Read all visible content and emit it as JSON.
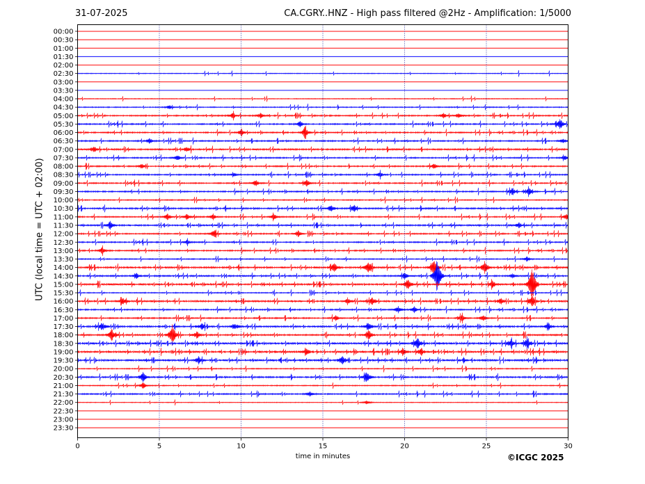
{
  "date": "31-07-2025",
  "title": "CA.CGRY..HNZ - High pass filtered @2Hz - Amplification: 1/5000",
  "copyright": "©ICGC 2025",
  "colors": {
    "red": "#ff0000",
    "blue": "#0000ff",
    "grid": "#00008b"
  },
  "chart_data": {
    "type": "line",
    "xlabel": "time in minutes",
    "ylabel": "UTC (local time = UTC + 02:00)",
    "xlim": [
      0,
      30
    ],
    "x_ticks": [
      0,
      5,
      10,
      15,
      20,
      25,
      30
    ],
    "row_labels": [
      "00:00",
      "00:30",
      "01:00",
      "01:30",
      "02:00",
      "02:30",
      "03:00",
      "03:30",
      "04:00",
      "04:30",
      "05:00",
      "05:30",
      "06:00",
      "06:30",
      "07:00",
      "07:30",
      "08:00",
      "08:30",
      "09:00",
      "09:30",
      "10:00",
      "10:30",
      "11:00",
      "11:30",
      "12:00",
      "12:30",
      "13:00",
      "13:30",
      "14:00",
      "14:30",
      "15:00",
      "15:30",
      "16:00",
      "16:30",
      "17:00",
      "17:30",
      "18:00",
      "18:30",
      "19:00",
      "19:30",
      "20:00",
      "20:30",
      "21:00",
      "21:30",
      "22:00",
      "22:30",
      "23:00",
      "23:30"
    ],
    "row_colors": [
      "red",
      "red",
      "red",
      "blue",
      "red",
      "blue",
      "red",
      "blue",
      "red",
      "blue",
      "red",
      "blue",
      "red",
      "blue",
      "red",
      "blue",
      "red",
      "blue",
      "red",
      "blue",
      "red",
      "blue",
      "red",
      "blue",
      "red",
      "blue",
      "red",
      "blue",
      "red",
      "blue",
      "red",
      "blue",
      "red",
      "blue",
      "red",
      "blue",
      "red",
      "blue",
      "red",
      "blue",
      "red",
      "blue",
      "red",
      "blue",
      "red",
      "red",
      "red",
      "red"
    ],
    "activity": [
      0,
      0,
      0,
      0,
      0,
      1,
      0,
      0,
      1,
      2,
      3,
      3,
      3,
      3,
      4,
      3,
      3,
      3,
      3,
      3,
      2,
      4,
      3,
      4,
      3,
      3,
      3,
      2,
      5,
      4,
      5,
      2,
      5,
      3,
      3,
      5,
      4,
      6,
      6,
      6,
      2,
      4,
      2,
      3,
      1,
      0,
      0,
      0
    ],
    "events": [
      {
        "row": "04:30",
        "minute": 5.6,
        "amp": 3
      },
      {
        "row": "05:00",
        "minute": 9.5,
        "amp": 4
      },
      {
        "row": "05:00",
        "minute": 11.2,
        "amp": 4
      },
      {
        "row": "05:00",
        "minute": 22.4,
        "amp": 4
      },
      {
        "row": "05:00",
        "minute": 23.3,
        "amp": 4
      },
      {
        "row": "05:30",
        "minute": 13.6,
        "amp": 5
      },
      {
        "row": "05:30",
        "minute": 29.5,
        "amp": 9
      },
      {
        "row": "06:00",
        "minute": 10.0,
        "amp": 5
      },
      {
        "row": "06:00",
        "minute": 13.9,
        "amp": 9
      },
      {
        "row": "06:30",
        "minute": 4.4,
        "amp": 4
      },
      {
        "row": "06:30",
        "minute": 29.7,
        "amp": 4
      },
      {
        "row": "07:00",
        "minute": 1.0,
        "amp": 5
      },
      {
        "row": "07:00",
        "minute": 6.7,
        "amp": 4
      },
      {
        "row": "07:30",
        "minute": 6.1,
        "amp": 4
      },
      {
        "row": "07:30",
        "minute": 29.8,
        "amp": 4
      },
      {
        "row": "08:00",
        "minute": 3.9,
        "amp": 4
      },
      {
        "row": "08:00",
        "minute": 21.8,
        "amp": 4
      },
      {
        "row": "08:30",
        "minute": 9.6,
        "amp": 3
      },
      {
        "row": "08:30",
        "minute": 18.5,
        "amp": 4
      },
      {
        "row": "09:00",
        "minute": 10.9,
        "amp": 5
      },
      {
        "row": "09:00",
        "minute": 14.0,
        "amp": 6
      },
      {
        "row": "09:30",
        "minute": 26.6,
        "amp": 6
      },
      {
        "row": "09:30",
        "minute": 27.6,
        "amp": 6
      },
      {
        "row": "10:30",
        "minute": 15.5,
        "amp": 5
      },
      {
        "row": "10:30",
        "minute": 16.9,
        "amp": 6
      },
      {
        "row": "11:00",
        "minute": 5.5,
        "amp": 5
      },
      {
        "row": "11:00",
        "minute": 6.7,
        "amp": 5
      },
      {
        "row": "11:00",
        "minute": 8.3,
        "amp": 5
      },
      {
        "row": "11:00",
        "minute": 12.0,
        "amp": 5
      },
      {
        "row": "11:00",
        "minute": 29.9,
        "amp": 5
      },
      {
        "row": "11:30",
        "minute": 2.0,
        "amp": 6
      },
      {
        "row": "11:30",
        "minute": 27.0,
        "amp": 4
      },
      {
        "row": "12:00",
        "minute": 8.3,
        "amp": 5
      },
      {
        "row": "12:00",
        "minute": 13.5,
        "amp": 5
      },
      {
        "row": "12:30",
        "minute": 6.7,
        "amp": 4
      },
      {
        "row": "13:00",
        "minute": 1.5,
        "amp": 5
      },
      {
        "row": "13:30",
        "minute": 27.5,
        "amp": 4
      },
      {
        "row": "14:00",
        "minute": 15.7,
        "amp": 7
      },
      {
        "row": "14:00",
        "minute": 17.8,
        "amp": 10
      },
      {
        "row": "14:00",
        "minute": 21.8,
        "amp": 12
      },
      {
        "row": "14:00",
        "minute": 24.9,
        "amp": 9
      },
      {
        "row": "14:30",
        "minute": 3.6,
        "amp": 4
      },
      {
        "row": "14:30",
        "minute": 20.0,
        "amp": 5
      },
      {
        "row": "14:30",
        "minute": 22.0,
        "amp": 30
      },
      {
        "row": "14:30",
        "minute": 26.6,
        "amp": 4
      },
      {
        "row": "15:00",
        "minute": 20.2,
        "amp": 8
      },
      {
        "row": "15:00",
        "minute": 25.4,
        "amp": 5
      },
      {
        "row": "15:00",
        "minute": 27.8,
        "amp": 28
      },
      {
        "row": "16:00",
        "minute": 2.8,
        "amp": 5
      },
      {
        "row": "16:00",
        "minute": 16.5,
        "amp": 4
      },
      {
        "row": "16:00",
        "minute": 18.0,
        "amp": 7
      },
      {
        "row": "16:00",
        "minute": 25.9,
        "amp": 5
      },
      {
        "row": "16:00",
        "minute": 27.8,
        "amp": 8
      },
      {
        "row": "16:30",
        "minute": 19.6,
        "amp": 5
      },
      {
        "row": "16:30",
        "minute": 20.6,
        "amp": 5
      },
      {
        "row": "17:00",
        "minute": 15.8,
        "amp": 4
      },
      {
        "row": "17:00",
        "minute": 23.5,
        "amp": 5
      },
      {
        "row": "17:00",
        "minute": 24.8,
        "amp": 5
      },
      {
        "row": "17:30",
        "minute": 1.5,
        "amp": 5
      },
      {
        "row": "17:30",
        "minute": 7.6,
        "amp": 5
      },
      {
        "row": "17:30",
        "minute": 9.6,
        "amp": 5
      },
      {
        "row": "17:30",
        "minute": 17.8,
        "amp": 5
      },
      {
        "row": "17:30",
        "minute": 28.8,
        "amp": 5
      },
      {
        "row": "18:00",
        "minute": 2.1,
        "amp": 10
      },
      {
        "row": "18:00",
        "minute": 5.8,
        "amp": 16
      },
      {
        "row": "18:00",
        "minute": 7.3,
        "amp": 6
      },
      {
        "row": "18:00",
        "minute": 17.8,
        "amp": 8
      },
      {
        "row": "18:30",
        "minute": 20.8,
        "amp": 9
      },
      {
        "row": "18:30",
        "minute": 26.5,
        "amp": 7
      },
      {
        "row": "18:30",
        "minute": 27.5,
        "amp": 7
      },
      {
        "row": "19:00",
        "minute": 14.0,
        "amp": 5
      },
      {
        "row": "19:00",
        "minute": 19.9,
        "amp": 5
      },
      {
        "row": "19:00",
        "minute": 21.0,
        "amp": 5
      },
      {
        "row": "19:30",
        "minute": 7.4,
        "amp": 5
      },
      {
        "row": "19:30",
        "minute": 16.2,
        "amp": 6
      },
      {
        "row": "20:30",
        "minute": 4.0,
        "amp": 8
      },
      {
        "row": "20:30",
        "minute": 17.7,
        "amp": 8
      },
      {
        "row": "21:00",
        "minute": 4.0,
        "amp": 5
      },
      {
        "row": "21:30",
        "minute": 14.2,
        "amp": 4
      },
      {
        "row": "22:00",
        "minute": 17.7,
        "amp": 3
      }
    ]
  }
}
